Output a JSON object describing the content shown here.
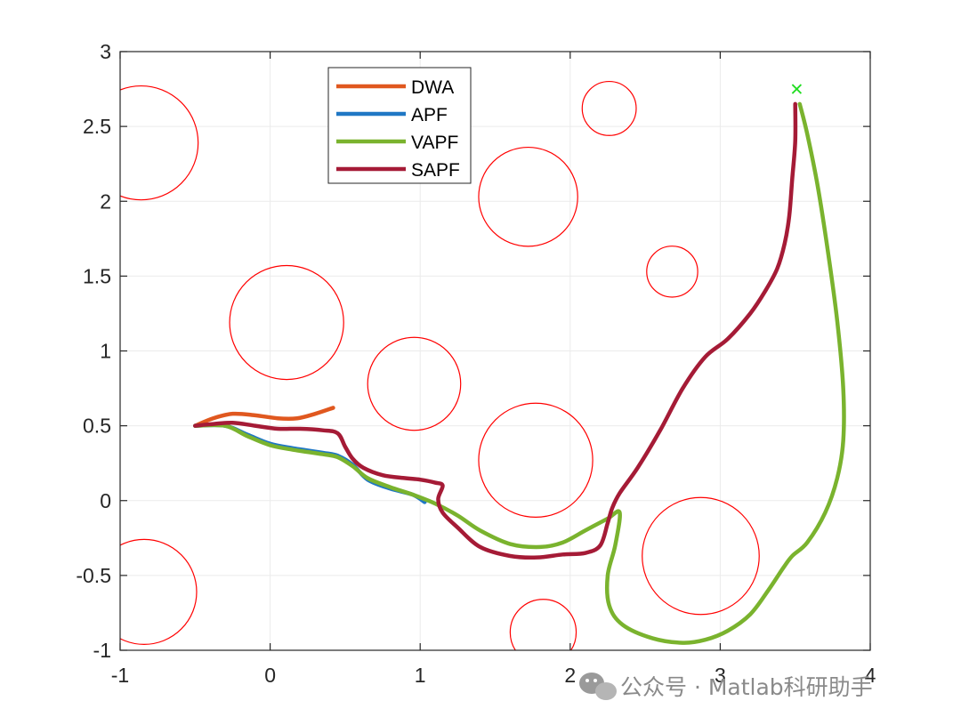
{
  "chart_data": {
    "type": "line",
    "title": "",
    "xlabel": "",
    "ylabel": "",
    "xlim": [
      -1,
      4
    ],
    "ylim": [
      -1,
      3
    ],
    "x_ticks": [
      -1,
      0,
      1,
      2,
      3,
      4
    ],
    "y_ticks": [
      -1,
      -0.5,
      0,
      0.5,
      1,
      1.5,
      2,
      2.5,
      3
    ],
    "x_tick_labels": [
      "-1",
      "0",
      "1",
      "2",
      "3",
      "4"
    ],
    "y_tick_labels": [
      "-1",
      "-0.5",
      "0",
      "0.5",
      "1",
      "1.5",
      "2",
      "2.5",
      "3"
    ],
    "grid": true,
    "legend_position": "top-center",
    "obstacle_color": "#ff0000",
    "goal_marker": {
      "symbol": "x",
      "x": 3.51,
      "y": 2.75,
      "color": "#22dd22"
    },
    "obstacles": [
      {
        "x": -0.86,
        "y": 2.39,
        "r": 0.38
      },
      {
        "x": 0.11,
        "y": 1.19,
        "r": 0.38
      },
      {
        "x": 0.96,
        "y": 0.78,
        "r": 0.31
      },
      {
        "x": 1.72,
        "y": 2.03,
        "r": 0.33
      },
      {
        "x": 2.26,
        "y": 2.62,
        "r": 0.18
      },
      {
        "x": 2.68,
        "y": 1.53,
        "r": 0.17
      },
      {
        "x": 1.77,
        "y": 0.27,
        "r": 0.38
      },
      {
        "x": 2.87,
        "y": -0.37,
        "r": 0.39
      },
      {
        "x": -0.84,
        "y": -0.61,
        "r": 0.35
      },
      {
        "x": 1.82,
        "y": -0.88,
        "r": 0.22
      }
    ],
    "series": [
      {
        "name": "DWA",
        "color": "#e0581f",
        "x": [
          -0.5,
          -0.38,
          -0.25,
          -0.1,
          0.05,
          0.18,
          0.3,
          0.42
        ],
        "y": [
          0.5,
          0.55,
          0.58,
          0.57,
          0.55,
          0.55,
          0.58,
          0.62
        ]
      },
      {
        "name": "APF",
        "color": "#1f77c4",
        "x": [
          -0.5,
          -0.3,
          -0.15,
          0.0,
          0.15,
          0.35,
          0.45,
          0.55,
          0.65,
          0.8,
          0.95,
          1.03
        ],
        "y": [
          0.5,
          0.5,
          0.44,
          0.38,
          0.35,
          0.32,
          0.3,
          0.24,
          0.14,
          0.08,
          0.04,
          -0.01
        ]
      },
      {
        "name": "VAPF",
        "color": "#7ab32e",
        "x": [
          -0.5,
          -0.3,
          -0.15,
          0.0,
          0.15,
          0.35,
          0.45,
          0.55,
          0.65,
          0.8,
          0.95,
          1.1,
          1.25,
          1.4,
          1.6,
          1.8,
          1.95,
          2.1,
          2.25,
          2.33,
          2.3,
          2.25,
          2.26,
          2.35,
          2.55,
          2.75,
          2.9,
          3.05,
          3.2,
          3.32,
          3.42,
          3.48,
          3.58,
          3.7,
          3.78,
          3.82,
          3.82,
          3.78,
          3.72,
          3.65,
          3.58,
          3.53
        ],
        "y": [
          0.5,
          0.5,
          0.43,
          0.37,
          0.34,
          0.31,
          0.29,
          0.23,
          0.15,
          0.09,
          0.04,
          -0.02,
          -0.1,
          -0.2,
          -0.29,
          -0.31,
          -0.28,
          -0.2,
          -0.12,
          -0.08,
          -0.3,
          -0.5,
          -0.7,
          -0.83,
          -0.92,
          -0.95,
          -0.93,
          -0.87,
          -0.76,
          -0.6,
          -0.45,
          -0.37,
          -0.28,
          -0.08,
          0.15,
          0.4,
          0.75,
          1.2,
          1.65,
          2.1,
          2.45,
          2.65
        ]
      },
      {
        "name": "SAPF",
        "color": "#a51b36",
        "x": [
          -0.5,
          -0.4,
          -0.25,
          -0.1,
          0.05,
          0.2,
          0.35,
          0.45,
          0.5,
          0.55,
          0.62,
          0.75,
          0.9,
          1.0,
          1.1,
          1.15,
          1.12,
          1.15,
          1.25,
          1.4,
          1.6,
          1.78,
          1.95,
          2.1,
          2.2,
          2.25,
          2.28,
          2.33,
          2.45,
          2.6,
          2.75,
          2.9,
          3.05,
          3.2,
          3.3,
          3.38,
          3.43,
          3.46,
          3.48,
          3.5,
          3.5
        ],
        "y": [
          0.5,
          0.51,
          0.52,
          0.5,
          0.48,
          0.48,
          0.47,
          0.45,
          0.36,
          0.28,
          0.22,
          0.17,
          0.15,
          0.14,
          0.12,
          0.1,
          0.01,
          -0.08,
          -0.18,
          -0.31,
          -0.37,
          -0.38,
          -0.36,
          -0.35,
          -0.3,
          -0.15,
          -0.05,
          0.05,
          0.22,
          0.47,
          0.75,
          0.96,
          1.08,
          1.25,
          1.4,
          1.55,
          1.72,
          1.9,
          2.15,
          2.4,
          2.65
        ]
      }
    ]
  },
  "watermark": {
    "text": "公众号 · Matlab科研助手",
    "icon": "wechat-icon"
  }
}
